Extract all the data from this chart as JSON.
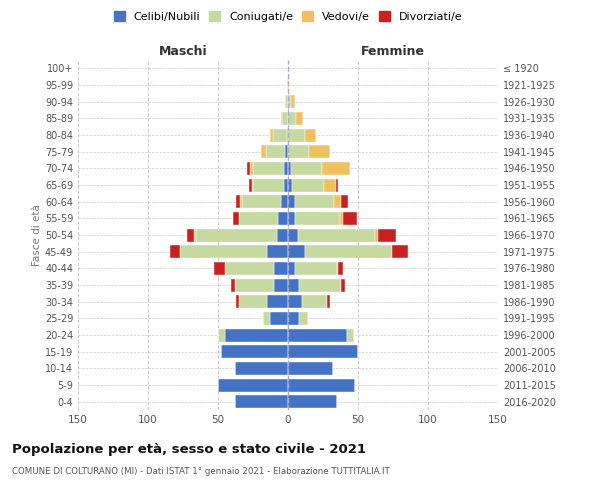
{
  "age_groups": [
    "0-4",
    "5-9",
    "10-14",
    "15-19",
    "20-24",
    "25-29",
    "30-34",
    "35-39",
    "40-44",
    "45-49",
    "50-54",
    "55-59",
    "60-64",
    "65-69",
    "70-74",
    "75-79",
    "80-84",
    "85-89",
    "90-94",
    "95-99",
    "100+"
  ],
  "birth_years": [
    "2016-2020",
    "2011-2015",
    "2006-2010",
    "2001-2005",
    "1996-2000",
    "1991-1995",
    "1986-1990",
    "1981-1985",
    "1976-1980",
    "1971-1975",
    "1966-1970",
    "1961-1965",
    "1956-1960",
    "1951-1955",
    "1946-1950",
    "1941-1945",
    "1936-1940",
    "1931-1935",
    "1926-1930",
    "1921-1925",
    "≤ 1920"
  ],
  "maschi": {
    "celibi": [
      38,
      50,
      38,
      48,
      45,
      13,
      15,
      10,
      10,
      15,
      8,
      7,
      5,
      3,
      3,
      2,
      1,
      0,
      0,
      0,
      0
    ],
    "coniugati": [
      0,
      0,
      0,
      0,
      5,
      5,
      20,
      28,
      35,
      62,
      58,
      28,
      28,
      22,
      22,
      14,
      10,
      4,
      2,
      1,
      0
    ],
    "vedovi": [
      0,
      0,
      0,
      0,
      0,
      0,
      0,
      0,
      0,
      0,
      1,
      0,
      1,
      1,
      2,
      3,
      2,
      1,
      0,
      0,
      0
    ],
    "divorziati": [
      0,
      0,
      0,
      0,
      0,
      0,
      2,
      3,
      8,
      7,
      5,
      4,
      3,
      2,
      2,
      0,
      0,
      0,
      0,
      0,
      0
    ]
  },
  "femmine": {
    "nubili": [
      35,
      48,
      32,
      50,
      42,
      8,
      10,
      8,
      5,
      12,
      7,
      5,
      5,
      3,
      2,
      0,
      0,
      0,
      0,
      0,
      0
    ],
    "coniugate": [
      0,
      0,
      0,
      0,
      5,
      6,
      18,
      30,
      30,
      62,
      55,
      32,
      28,
      23,
      22,
      15,
      12,
      6,
      2,
      0,
      0
    ],
    "vedove": [
      0,
      0,
      0,
      0,
      0,
      0,
      0,
      0,
      1,
      0,
      2,
      2,
      5,
      8,
      20,
      15,
      8,
      5,
      3,
      1,
      0
    ],
    "divorziate": [
      0,
      0,
      0,
      0,
      0,
      0,
      2,
      3,
      3,
      12,
      13,
      10,
      5,
      2,
      0,
      0,
      0,
      0,
      0,
      0,
      0
    ]
  },
  "colors": {
    "celibi": "#4472c4",
    "coniugati": "#c5d9a0",
    "vedovi": "#f0c060",
    "divorziati": "#cc2020"
  },
  "title": "Popolazione per età, sesso e stato civile - 2021",
  "subtitle": "COMUNE DI COLTURANO (MI) - Dati ISTAT 1° gennaio 2021 - Elaborazione TUTTITALIA.IT",
  "xlabel_left": "Maschi",
  "xlabel_right": "Femmine",
  "ylabel_left": "Fasce di età",
  "xlim": 150,
  "legend_labels": [
    "Celibi/Nubili",
    "Coniugati/e",
    "Vedovi/e",
    "Divorziati/e"
  ],
  "bg_color": "#ffffff",
  "grid_color": "#cccccc"
}
